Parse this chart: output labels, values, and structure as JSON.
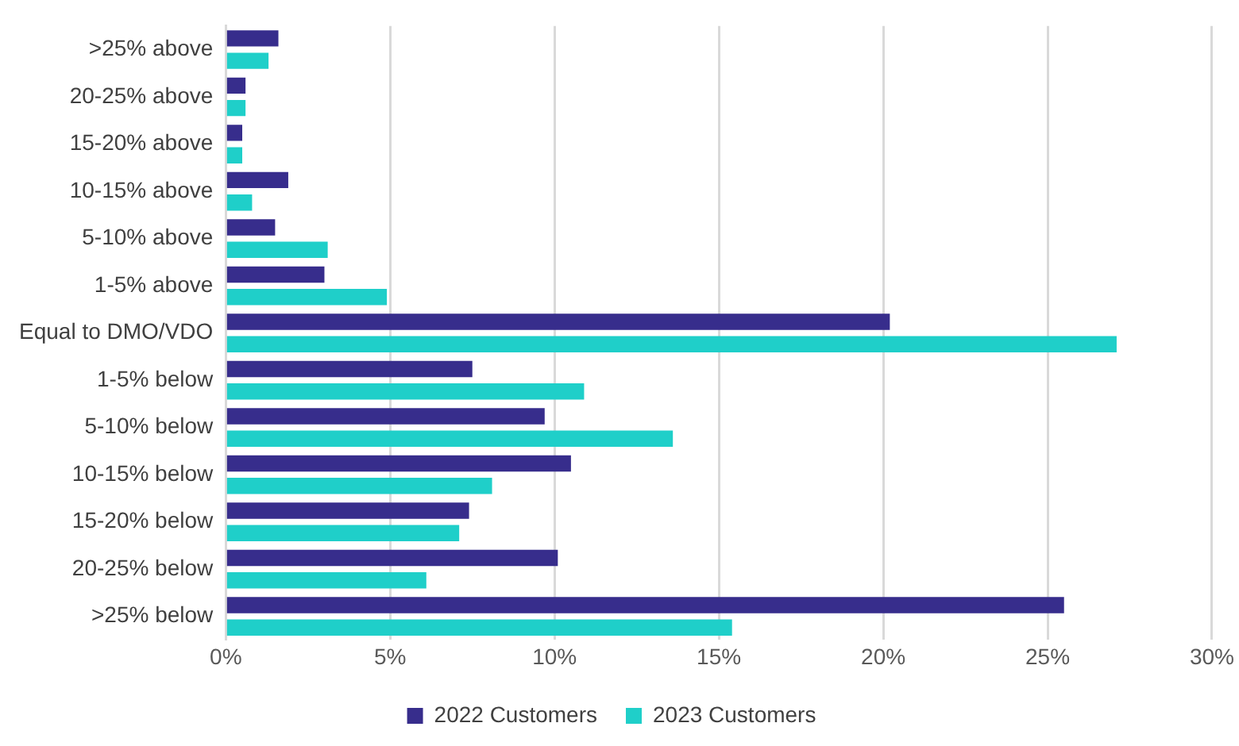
{
  "chart_data": {
    "type": "bar",
    "orientation": "horizontal",
    "categories": [
      ">25% above",
      "20-25% above",
      "15-20% above",
      "10-15% above",
      "5-10% above",
      "1-5% above",
      "Equal to DMO/VDO",
      "1-5% below",
      "5-10% below",
      "10-15% below",
      "15-20% below",
      "20-25% below",
      ">25% below"
    ],
    "series": [
      {
        "name": "2022 Customers",
        "color": "#372d8c",
        "values": [
          1.6,
          0.6,
          0.5,
          1.9,
          1.5,
          3.0,
          20.2,
          7.5,
          9.7,
          10.5,
          7.4,
          10.1,
          25.5
        ]
      },
      {
        "name": "2023 Customers",
        "color": "#1fcfc9",
        "values": [
          1.3,
          0.6,
          0.5,
          0.8,
          3.1,
          4.9,
          27.1,
          10.9,
          13.6,
          8.1,
          7.1,
          6.1,
          15.4
        ]
      }
    ],
    "xlim": [
      0,
      30
    ],
    "xticks": [
      {
        "value": 0,
        "label": "0%"
      },
      {
        "value": 5,
        "label": "5%"
      },
      {
        "value": 10,
        "label": "10%"
      },
      {
        "value": 15,
        "label": "15%"
      },
      {
        "value": 20,
        "label": "20%"
      },
      {
        "value": 25,
        "label": "25%"
      },
      {
        "value": 30,
        "label": "30%"
      }
    ],
    "grid": "x",
    "legend": "bottom"
  }
}
